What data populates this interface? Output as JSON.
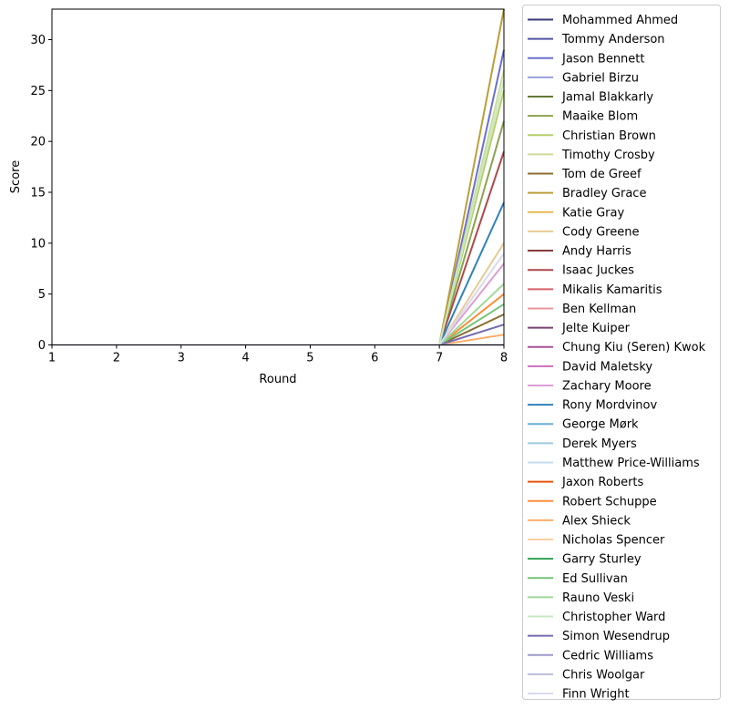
{
  "chart_data": {
    "type": "line",
    "xlabel": "Round",
    "ylabel": "Score",
    "xlim": [
      1,
      8
    ],
    "ylim": [
      0,
      33
    ],
    "xticks": [
      1,
      2,
      3,
      4,
      5,
      6,
      7,
      8
    ],
    "yticks": [
      0,
      5,
      10,
      15,
      20,
      25,
      30
    ],
    "grid": false,
    "legend_position": "outside-right",
    "x": [
      1,
      2,
      3,
      4,
      5,
      6,
      7,
      8
    ],
    "series": [
      {
        "name": "Mohammed Ahmed",
        "color": "#393b79",
        "final": 0
      },
      {
        "name": "Tommy Anderson",
        "color": "#5254a3",
        "final": 0
      },
      {
        "name": "Jason Bennett",
        "color": "#6b6ecf",
        "final": 29
      },
      {
        "name": "Gabriel Birzu",
        "color": "#9c9ede",
        "final": 0
      },
      {
        "name": "Jamal Blakkarly",
        "color": "#637939",
        "final": 0
      },
      {
        "name": "Maaike Blom",
        "color": "#8ca252",
        "final": 22
      },
      {
        "name": "Christian Brown",
        "color": "#b5cf6b",
        "final": 25
      },
      {
        "name": "Timothy Crosby",
        "color": "#cedb9c",
        "final": 27
      },
      {
        "name": "Tom de Greef",
        "color": "#8c6d31",
        "final": 3
      },
      {
        "name": "Bradley Grace",
        "color": "#bd9e39",
        "final": 33
      },
      {
        "name": "Katie Gray",
        "color": "#e7ba52",
        "final": 0
      },
      {
        "name": "Cody Greene",
        "color": "#e7cb94",
        "final": 10
      },
      {
        "name": "Andy Harris",
        "color": "#843c39",
        "final": 0
      },
      {
        "name": "Isaac Juckes",
        "color": "#ad494a",
        "final": 19
      },
      {
        "name": "Mikalis Kamaritis",
        "color": "#d6616b",
        "final": 0
      },
      {
        "name": "Ben Kellman",
        "color": "#e7969c",
        "final": 0
      },
      {
        "name": "Jelte Kuiper",
        "color": "#7b4173",
        "final": 0
      },
      {
        "name": "Chung Kiu (Seren) Kwok",
        "color": "#a55194",
        "final": 0
      },
      {
        "name": "David Maletsky",
        "color": "#ce6dbd",
        "final": 0
      },
      {
        "name": "Zachary Moore",
        "color": "#de9ed6",
        "final": 8
      },
      {
        "name": "Rony Mordvinov",
        "color": "#3182bd",
        "final": 14
      },
      {
        "name": "George Mørk",
        "color": "#6baed6",
        "final": 0
      },
      {
        "name": "Derek Myers",
        "color": "#9ecae1",
        "final": 0
      },
      {
        "name": "Matthew Price-Williams",
        "color": "#c6dbef",
        "final": 0
      },
      {
        "name": "Jaxon Roberts",
        "color": "#e6550d",
        "final": 0
      },
      {
        "name": "Robert Schuppe",
        "color": "#fd8d3c",
        "final": 5
      },
      {
        "name": "Alex Shieck",
        "color": "#fdae6b",
        "final": 1
      },
      {
        "name": "Nicholas Spencer",
        "color": "#fdd0a2",
        "final": 0
      },
      {
        "name": "Garry Sturley",
        "color": "#31a354",
        "final": 0
      },
      {
        "name": "Ed Sullivan",
        "color": "#74c476",
        "final": 4
      },
      {
        "name": "Rauno Veski",
        "color": "#a1d99b",
        "final": 6
      },
      {
        "name": "Christopher Ward",
        "color": "#c7e9c0",
        "final": 26
      },
      {
        "name": "Simon Wesendrup",
        "color": "#756bb1",
        "final": 2
      },
      {
        "name": "Cedric Williams",
        "color": "#9e9ac8",
        "final": 0
      },
      {
        "name": "Chris Woolgar",
        "color": "#bcbddc",
        "final": 0
      },
      {
        "name": "Finn Wright",
        "color": "#dadaeb",
        "final": 9
      }
    ]
  }
}
